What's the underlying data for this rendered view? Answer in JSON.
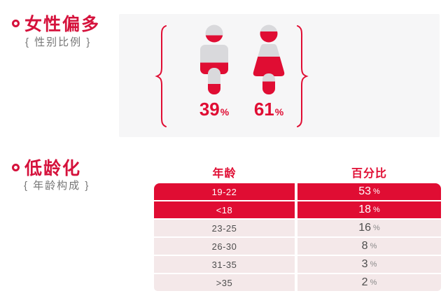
{
  "colors": {
    "accent": "#e00d33",
    "title": "#d5123c",
    "panel": "#f6f6f7",
    "row_pink": "#f4e8e9",
    "row_text": "#4d4d4d",
    "unit_gray": "#8a8a8a",
    "subtitle": "#767676",
    "icon_gray": "#d9d9dc"
  },
  "gender_section": {
    "title": "女性偏多",
    "subtitle": "{ 性别比例 }",
    "figures": [
      {
        "type": "male",
        "label": "39",
        "unit": "%",
        "value": 39
      },
      {
        "type": "female",
        "label": "61",
        "unit": "%",
        "value": 61
      }
    ]
  },
  "age_section": {
    "title": "低龄化",
    "subtitle": "{ 年龄构成 }",
    "table": {
      "headers": [
        "年龄",
        "百分比"
      ],
      "rows": [
        {
          "age": "19-22",
          "percent": "53",
          "unit": "%",
          "highlight": true
        },
        {
          "age": "<18",
          "percent": "18",
          "unit": "%",
          "highlight": true
        },
        {
          "age": "23-25",
          "percent": "16",
          "unit": "%",
          "highlight": false
        },
        {
          "age": "26-30",
          "percent": "8",
          "unit": "%",
          "highlight": false
        },
        {
          "age": "31-35",
          "percent": "3",
          "unit": "%",
          "highlight": false
        },
        {
          "age": ">35",
          "percent": "2",
          "unit": "%",
          "highlight": false
        }
      ]
    }
  },
  "chart_data": [
    {
      "type": "pictograph",
      "title": "女性偏多 { 性别比例 }",
      "categories": [
        "male-icon",
        "female-icon"
      ],
      "values": [
        39,
        61
      ],
      "unit": "%",
      "notes": "two human pictograms filled red from bottom to the stated percentage, flanked by red curly braces"
    },
    {
      "type": "table",
      "title": "低龄化 { 年龄构成 }",
      "columns": [
        "年龄",
        "百分比"
      ],
      "rows": [
        [
          "19-22",
          "53 %"
        ],
        [
          "<18",
          "18 %"
        ],
        [
          "23-25",
          "16 %"
        ],
        [
          "26-30",
          "8 %"
        ],
        [
          "31-35",
          "3 %"
        ],
        [
          ">35",
          "2 %"
        ]
      ],
      "highlighted_rows": [
        0,
        1
      ]
    }
  ]
}
